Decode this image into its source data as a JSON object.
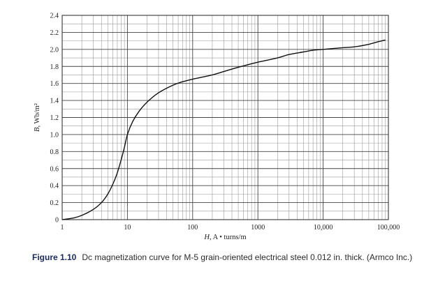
{
  "chart_data": {
    "type": "line",
    "x_scale": "log",
    "xlim": [
      1,
      100000
    ],
    "ylim": [
      0,
      2.4
    ],
    "grid": true,
    "xlabel_italic": "H",
    "xlabel_rest": ", A • turns/m",
    "ylabel_italic": "B",
    "ylabel_rest": ", Wb/m²",
    "x_ticks": [
      1,
      10,
      100,
      1000,
      10000,
      100000
    ],
    "x_tick_labels": [
      "1",
      "10",
      "100",
      "1000",
      "10,000",
      "100,000"
    ],
    "y_ticks": [
      0,
      0.2,
      0.4,
      0.6,
      0.8,
      1.0,
      1.2,
      1.4,
      1.6,
      1.8,
      2.0,
      2.2,
      2.4
    ],
    "y_tick_labels": [
      "0",
      "0.2",
      "0.4",
      "0.6",
      "0.8",
      "1.0",
      "1.2",
      "1.4",
      "1.6",
      "1.8",
      "2.0",
      "2.2",
      "2.4"
    ],
    "series": [
      {
        "color": "#111111",
        "x": [
          1,
          1.5,
          2,
          3,
          4,
          5,
          6,
          7,
          8,
          9,
          10,
          12,
          15,
          20,
          30,
          50,
          70,
          100,
          200,
          300,
          500,
          700,
          1000,
          2000,
          3000,
          5000,
          7000,
          10000,
          20000,
          30000,
          50000,
          70000,
          90000
        ],
        "y": [
          0,
          0.02,
          0.05,
          0.12,
          0.2,
          0.3,
          0.42,
          0.55,
          0.7,
          0.85,
          1.0,
          1.15,
          1.27,
          1.38,
          1.49,
          1.58,
          1.62,
          1.65,
          1.7,
          1.74,
          1.79,
          1.82,
          1.85,
          1.9,
          1.94,
          1.97,
          1.99,
          2.0,
          2.02,
          2.03,
          2.06,
          2.09,
          2.11
        ]
      }
    ]
  },
  "caption": {
    "label": "Figure 1.10",
    "text": "Dc magnetization curve for M-5 grain-oriented electrical steel 0.012 in. thick. (Armco Inc.)"
  }
}
